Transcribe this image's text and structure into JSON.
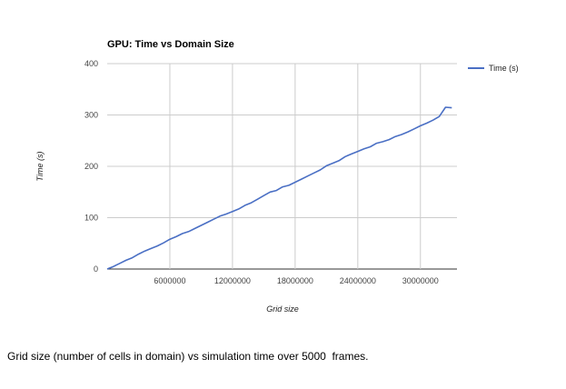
{
  "caption": "Grid size (number of cells in domain) vs simulation time over 5000  frames.",
  "chart_data": {
    "type": "line",
    "title": "GPU: Time vs Domain Size",
    "xlabel": "Grid size",
    "ylabel": "Time (s)",
    "xlim": [
      0,
      33500000
    ],
    "ylim": [
      0,
      400
    ],
    "x_ticks": [
      6000000,
      12000000,
      18000000,
      24000000,
      30000000
    ],
    "x_tick_labels": [
      "6000000",
      "12000000",
      "18000000",
      "24000000",
      "30000000"
    ],
    "y_ticks": [
      0,
      100,
      200,
      300,
      400
    ],
    "y_tick_labels": [
      "0",
      "100",
      "200",
      "300",
      "400"
    ],
    "grid": true,
    "legend_position": "right",
    "series": [
      {
        "name": "Time (s)",
        "color": "#4a6fc4",
        "x": [
          0,
          600000,
          1200000,
          1800000,
          2400000,
          3000000,
          3600000,
          4200000,
          4800000,
          5400000,
          6000000,
          6600000,
          7200000,
          7800000,
          8400000,
          9000000,
          9600000,
          10200000,
          10800000,
          11400000,
          12000000,
          12600000,
          13200000,
          13800000,
          14400000,
          15000000,
          15600000,
          16200000,
          16800000,
          17400000,
          18000000,
          18600000,
          19200000,
          19800000,
          20400000,
          21000000,
          21600000,
          22200000,
          22800000,
          23400000,
          24000000,
          24600000,
          25200000,
          25800000,
          26400000,
          27000000,
          27600000,
          28200000,
          28800000,
          29400000,
          30000000,
          30600000,
          31200000,
          31800000,
          32400000,
          33000000
        ],
        "values": [
          0,
          5,
          11,
          17,
          22,
          29,
          35,
          40,
          45,
          51,
          58,
          63,
          69,
          73,
          79,
          85,
          91,
          97,
          103,
          107,
          112,
          117,
          124,
          129,
          136,
          143,
          150,
          153,
          160,
          163,
          169,
          175,
          181,
          187,
          193,
          201,
          206,
          211,
          219,
          224,
          229,
          234,
          238,
          245,
          248,
          252,
          258,
          262,
          267,
          273,
          279,
          284,
          290,
          297,
          315,
          314
        ]
      }
    ]
  }
}
